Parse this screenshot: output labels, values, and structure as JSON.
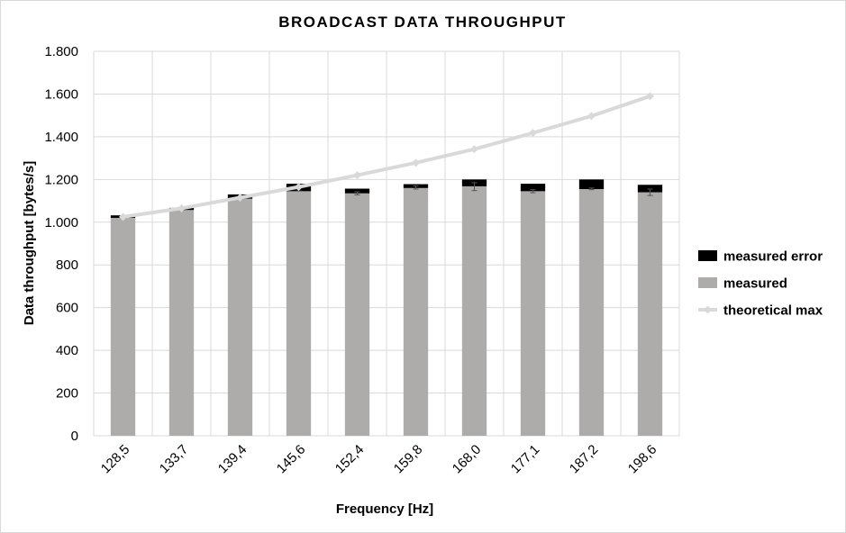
{
  "chart_data": {
    "type": "bar",
    "title": "BROADCAST DATA THROUGHPUT",
    "xlabel": "Frequency [Hz]",
    "ylabel": "Data throughput [bytes/s]",
    "categories": [
      "128,5",
      "133,7",
      "139,4",
      "145,6",
      "152,4",
      "159,8",
      "168,0",
      "177,1",
      "187,2",
      "198,6"
    ],
    "ylim": [
      0,
      1800
    ],
    "yticks": [
      0,
      200,
      400,
      600,
      800,
      1000,
      1200,
      1400,
      1600,
      1800
    ],
    "ytick_labels": [
      "0",
      "200",
      "400",
      "600",
      "800",
      "1.000",
      "1.200",
      "1.400",
      "1.600",
      "1.800"
    ],
    "grid": true,
    "legend_position": "right",
    "series": [
      {
        "name": "measured",
        "kind": "bar-stacked-base",
        "color": "#aeabab",
        "values": [
          1020,
          1057,
          1110,
          1145,
          1135,
          1160,
          1168,
          1145,
          1155,
          1140
        ]
      },
      {
        "name": "measured error",
        "kind": "bar-stacked-top",
        "color": "#000000",
        "values": [
          12,
          10,
          20,
          35,
          22,
          18,
          32,
          35,
          45,
          35
        ]
      },
      {
        "name": "theoretical max",
        "kind": "line",
        "color": "#d9d9d9",
        "values": [
          1025,
          1065,
          1115,
          1165,
          1220,
          1278,
          1342,
          1418,
          1497,
          1590
        ]
      }
    ],
    "error_bar_ranges": [
      [
        1018,
        1026
      ],
      [
        1056,
        1064
      ],
      [
        1108,
        1118
      ],
      [
        1146,
        1160
      ],
      [
        1128,
        1142
      ],
      [
        1155,
        1170
      ],
      [
        1148,
        1185
      ],
      [
        1138,
        1152
      ],
      [
        1152,
        1160
      ],
      [
        1125,
        1155
      ]
    ]
  }
}
